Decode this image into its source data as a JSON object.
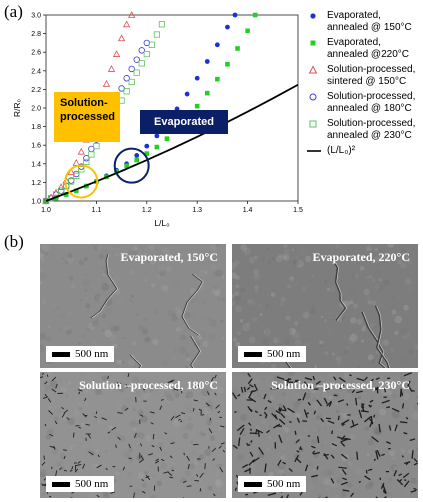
{
  "panel_a_label": "(a)",
  "panel_b_label": "(b)",
  "chart_data": {
    "type": "scatter",
    "xlabel": "L/L₀",
    "ylabel": "R/R₀",
    "xlim": [
      1.0,
      1.5
    ],
    "ylim": [
      1.0,
      3.0
    ],
    "xticks": [
      "1.0",
      "1.1",
      "1.2",
      "1.3",
      "1.4",
      "1.5"
    ],
    "yticks": [
      "1.0",
      "1.2",
      "1.4",
      "1.6",
      "1.8",
      "2.0",
      "2.2",
      "2.4",
      "2.6",
      "2.8",
      "3.0"
    ],
    "series": [
      {
        "name": "Evaporated, annealed @ 150°C",
        "marker": "filled-circle",
        "color": "#1f2fd6",
        "x": [
          1.0,
          1.02,
          1.04,
          1.06,
          1.08,
          1.1,
          1.12,
          1.14,
          1.16,
          1.18,
          1.2,
          1.22,
          1.24,
          1.26,
          1.28,
          1.3,
          1.32,
          1.34,
          1.36,
          1.375
        ],
        "y": [
          1.0,
          1.03,
          1.07,
          1.11,
          1.16,
          1.21,
          1.27,
          1.33,
          1.4,
          1.49,
          1.59,
          1.7,
          1.84,
          1.99,
          2.15,
          2.32,
          2.5,
          2.68,
          2.87,
          3.0
        ]
      },
      {
        "name": "Evaporated, annealed @ 220°C",
        "marker": "filled-square",
        "color": "#22d022",
        "x": [
          1.0,
          1.02,
          1.04,
          1.06,
          1.08,
          1.1,
          1.12,
          1.14,
          1.16,
          1.18,
          1.2,
          1.22,
          1.24,
          1.26,
          1.28,
          1.3,
          1.32,
          1.34,
          1.36,
          1.38,
          1.4,
          1.415
        ],
        "y": [
          1.0,
          1.03,
          1.07,
          1.11,
          1.16,
          1.21,
          1.26,
          1.32,
          1.38,
          1.44,
          1.51,
          1.58,
          1.67,
          1.77,
          1.89,
          2.02,
          2.16,
          2.31,
          2.47,
          2.64,
          2.83,
          3.0
        ]
      },
      {
        "name": "Solution-processed, sintered @ 150°C",
        "marker": "open-triangle",
        "color": "#e05050",
        "x": [
          1.0,
          1.01,
          1.02,
          1.03,
          1.04,
          1.05,
          1.06,
          1.07,
          1.08,
          1.09,
          1.1,
          1.11,
          1.12,
          1.13,
          1.14,
          1.15,
          1.16,
          1.17
        ],
        "y": [
          1.0,
          1.04,
          1.09,
          1.15,
          1.22,
          1.31,
          1.41,
          1.53,
          1.66,
          1.8,
          1.95,
          2.1,
          2.26,
          2.42,
          2.58,
          2.75,
          2.9,
          3.0
        ]
      },
      {
        "name": "Solution-processed, annealed @ 180°C",
        "marker": "open-circle",
        "color": "#3a3ad0",
        "x": [
          1.0,
          1.01,
          1.02,
          1.03,
          1.04,
          1.05,
          1.06,
          1.07,
          1.08,
          1.09,
          1.1,
          1.11,
          1.12,
          1.13,
          1.14,
          1.15,
          1.16,
          1.17,
          1.18,
          1.19,
          1.2
        ],
        "y": [
          1.0,
          1.03,
          1.07,
          1.11,
          1.16,
          1.22,
          1.29,
          1.37,
          1.46,
          1.56,
          1.66,
          1.77,
          1.88,
          1.99,
          2.1,
          2.21,
          2.32,
          2.42,
          2.52,
          2.62,
          2.7
        ]
      },
      {
        "name": "Solution-processed, annealed @ 230°C",
        "marker": "open-square",
        "color": "#5cc45c",
        "x": [
          1.0,
          1.01,
          1.02,
          1.03,
          1.04,
          1.05,
          1.06,
          1.07,
          1.08,
          1.09,
          1.1,
          1.11,
          1.12,
          1.13,
          1.14,
          1.15,
          1.16,
          1.17,
          1.18,
          1.19,
          1.2,
          1.21,
          1.22,
          1.23
        ],
        "y": [
          1.0,
          1.03,
          1.07,
          1.11,
          1.16,
          1.21,
          1.27,
          1.34,
          1.42,
          1.5,
          1.59,
          1.68,
          1.78,
          1.88,
          1.98,
          2.08,
          2.18,
          2.28,
          2.38,
          2.48,
          2.58,
          2.68,
          2.79,
          2.9
        ]
      },
      {
        "name": "(L/L₀)²",
        "marker": "line",
        "color": "#000000",
        "x": [
          1.0,
          1.05,
          1.1,
          1.15,
          1.2,
          1.25,
          1.3,
          1.35,
          1.4,
          1.45,
          1.5
        ],
        "y": [
          1.0,
          1.1025,
          1.21,
          1.3225,
          1.44,
          1.5625,
          1.69,
          1.8225,
          1.96,
          2.1025,
          2.25
        ]
      }
    ],
    "annotations": [
      {
        "text": "Solution-\nprocessed",
        "box_color": "#ffc000",
        "text_color": "#000000"
      },
      {
        "text": "Evaporated",
        "box_color": "#0b1f66",
        "text_color": "#ffffff"
      }
    ],
    "circles": [
      {
        "x": 1.07,
        "y": 1.21,
        "color": "#ffc000"
      },
      {
        "x": 1.17,
        "y": 1.38,
        "color": "#0b1f66"
      }
    ]
  },
  "legend": [
    {
      "line1": "Evaporated,",
      "line2": "annealed @ 150°C"
    },
    {
      "line1": "Evaporated,",
      "line2": "annealed @220°C"
    },
    {
      "line1": "Solution-processed,",
      "line2": "sintered @ 150°C"
    },
    {
      "line1": "Solution-processed,",
      "line2": "annealed @ 180°C"
    },
    {
      "line1": "Solution-processed,",
      "line2": "annealed @ 230°C"
    },
    {
      "line1": "(L/L₀)²",
      "line2": ""
    }
  ],
  "micrographs": [
    {
      "caption": "Evaporated, 150°C",
      "scale": "500 nm",
      "tone": "#8b8b8b"
    },
    {
      "caption": "Evaporated, 220°C",
      "scale": "500 nm",
      "tone": "#7d7d7d"
    },
    {
      "caption": "Solution –processed, 180°C",
      "scale": "500 nm",
      "tone": "#929292"
    },
    {
      "caption": "Solution –processed, 230°C",
      "scale": "500 nm",
      "tone": "#8a8a8a"
    }
  ]
}
